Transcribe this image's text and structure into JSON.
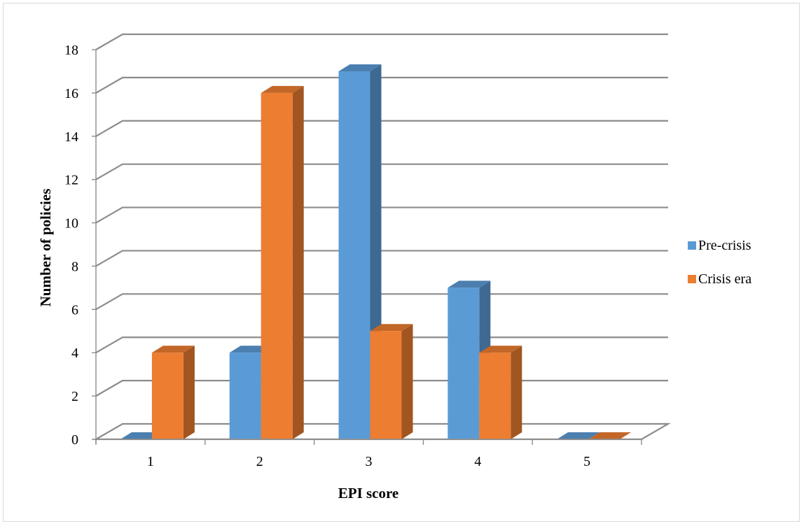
{
  "chart_data": {
    "type": "bar",
    "style": "3d-clustered-column",
    "categories": [
      "1",
      "2",
      "3",
      "4",
      "5"
    ],
    "series": [
      {
        "name": "Pre-crisis",
        "values": [
          0,
          4,
          17,
          7,
          0
        ],
        "color": "#5b9bd5"
      },
      {
        "name": "Crisis era",
        "values": [
          4,
          16,
          5,
          4,
          0
        ],
        "color": "#ed7d31"
      }
    ],
    "ylim": [
      0,
      18
    ],
    "yticks": [
      "0",
      "2",
      "4",
      "6",
      "8",
      "10",
      "12",
      "14",
      "16",
      "18"
    ],
    "xlabel": "EPI score",
    "ylabel": "Number of policies",
    "grid": true,
    "legend": "right"
  }
}
